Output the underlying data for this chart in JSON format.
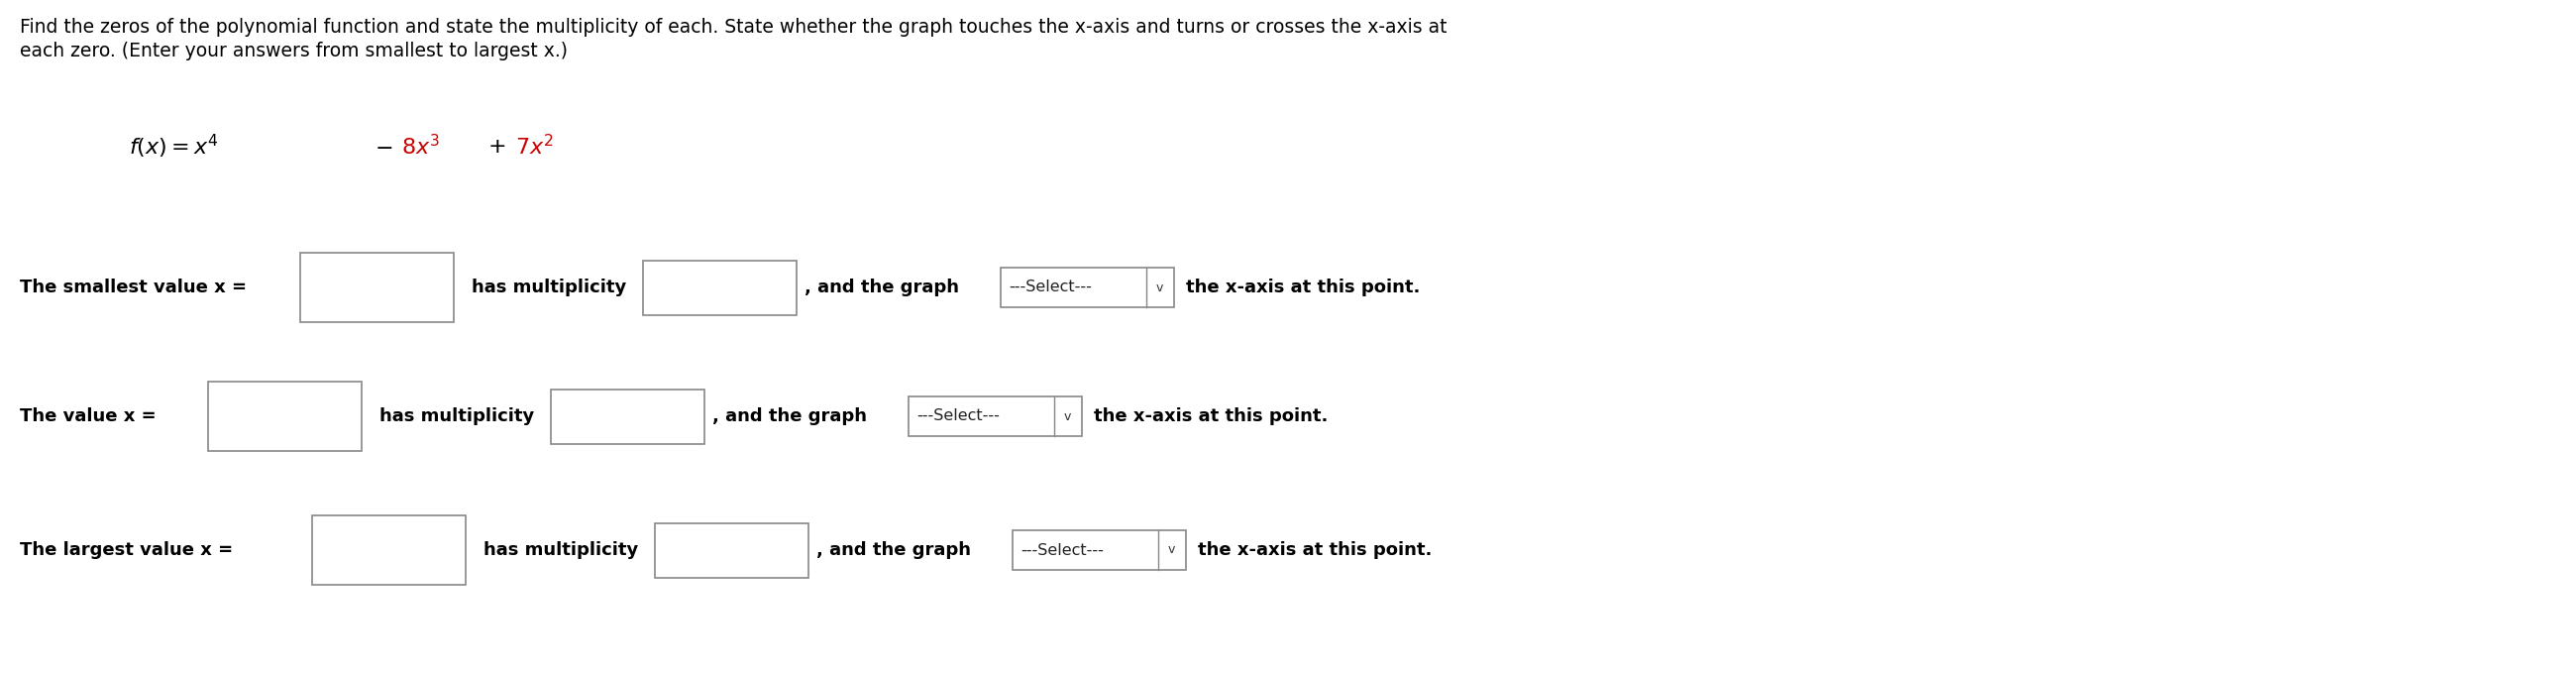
{
  "background_color": "#ffffff",
  "title_line1": "Find the zeros of the polynomial function and state the multiplicity of each. State whether the graph touches the x-axis and turns or crosses the x-axis at",
  "title_line2": "each zero. (Enter your answers from smallest to largest x.)",
  "rows": [
    {
      "label": "The smallest value x =",
      "has_multiplicity": "has multiplicity",
      "and_graph": ", and the graph",
      "dropdown": "---Select---",
      "suffix": "the x-axis at this point."
    },
    {
      "label": "The value x =",
      "has_multiplicity": "has multiplicity",
      "and_graph": ", and the graph",
      "dropdown": "---Select---",
      "suffix": "the x-axis at this point."
    },
    {
      "label": "The largest value x =",
      "has_multiplicity": "has multiplicity",
      "and_graph": ", and the graph",
      "dropdown": "---Select---",
      "suffix": "the x-axis at this point."
    }
  ],
  "font_size_title": 13.5,
  "font_size_body": 13.0,
  "font_size_function": 16,
  "text_color": "#000000",
  "box_edge_color": "#888888",
  "box_fill_color": "#ffffff",
  "dropdown_edge_color": "#888888",
  "dropdown_fill_color": "#ffffff",
  "func_black": "#000000",
  "func_red": "#cc0000"
}
